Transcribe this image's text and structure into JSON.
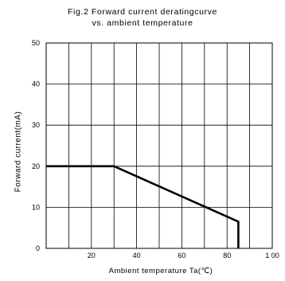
{
  "chart_data": {
    "type": "line",
    "title_lines": [
      "Fig.2 Forward current deratingcurve",
      "vs. ambient temperature"
    ],
    "xlabel": "Ambient temperature Ta(℃)",
    "ylabel": "Forward current(mA)",
    "xlim": [
      0,
      100
    ],
    "ylim": [
      0,
      50
    ],
    "x_ticks": [
      20,
      40,
      60,
      80,
      100
    ],
    "x_tick_labels": [
      "20",
      "40",
      "60",
      "80",
      "1 00"
    ],
    "y_ticks": [
      0,
      10,
      20,
      30,
      40,
      50
    ],
    "x_grid": [
      10,
      20,
      30,
      40,
      50,
      60,
      70,
      80,
      90
    ],
    "y_grid": [
      10,
      20,
      30,
      40
    ],
    "grid": true,
    "series": [
      {
        "x": [
          0,
          30,
          85,
          85
        ],
        "y": [
          20,
          20,
          6.5,
          0
        ]
      }
    ],
    "line_color": "#000000"
  }
}
